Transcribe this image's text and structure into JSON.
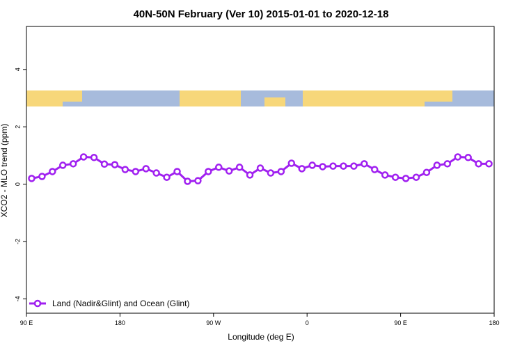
{
  "chart_data": {
    "type": "line",
    "title": "40N-50N February (Ver 10)   2015-01-01 to 2020-12-18",
    "x_label": "Longitude (deg E)",
    "y_label": "XCO2 - MLO trend (ppm)",
    "x": [
      95,
      105,
      115,
      125,
      135,
      145,
      155,
      165,
      175,
      185,
      195,
      205,
      215,
      225,
      235,
      245,
      255,
      265,
      275,
      285,
      295,
      305,
      315,
      325,
      335,
      345,
      355,
      365,
      375,
      385,
      395,
      405,
      415,
      425,
      435,
      445,
      455,
      465,
      475,
      485,
      495,
      505,
      515,
      525,
      535
    ],
    "series": [
      {
        "name": "Land (Nadir&Glint) and Ocean (Glint)",
        "color": "#a020f0",
        "values": [
          0.2,
          0.27,
          0.44,
          0.66,
          0.71,
          0.95,
          0.93,
          0.7,
          0.68,
          0.51,
          0.44,
          0.54,
          0.39,
          0.24,
          0.44,
          0.1,
          0.12,
          0.44,
          0.59,
          0.46,
          0.59,
          0.32,
          0.56,
          0.39,
          0.44,
          0.73,
          0.54,
          0.66,
          0.61,
          0.63,
          0.63,
          0.63,
          0.71,
          0.51,
          0.32,
          0.24,
          0.2,
          0.24,
          0.41,
          0.66,
          0.71,
          0.95,
          0.93,
          0.71,
          0.71
        ]
      }
    ],
    "xlim": [
      90,
      540
    ],
    "xticks": [
      {
        "value": 90,
        "label": "90 E"
      },
      180,
      {
        "value": 270,
        "label": "90 W"
      },
      {
        "value": 360,
        "label": "0"
      },
      {
        "value": 450,
        "label": "90 E"
      },
      {
        "value": 540,
        "label": "180"
      }
    ],
    "ylim": [
      -4.5,
      5.5
    ],
    "yticks": [
      -4,
      -2,
      0,
      2,
      4
    ],
    "legend": "bottom-left",
    "grid": false
  }
}
